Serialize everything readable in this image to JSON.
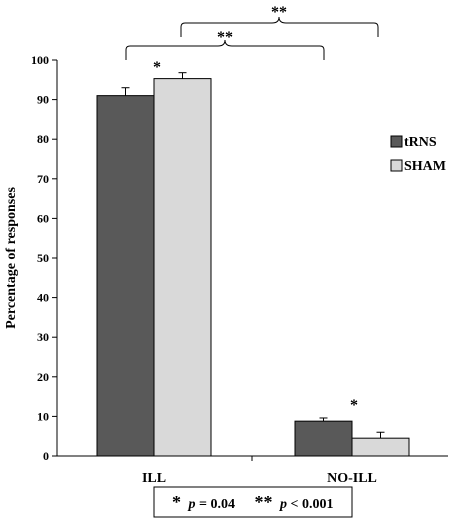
{
  "chart_data": {
    "type": "bar",
    "ylabel": "Percentage of responses",
    "ylim": [
      0,
      100
    ],
    "yticks": [
      0,
      10,
      20,
      30,
      40,
      50,
      60,
      70,
      80,
      90,
      100
    ],
    "categories": [
      "ILL",
      "NO-ILL"
    ],
    "series": [
      {
        "name": "tRNS",
        "values": [
          91,
          8.8
        ],
        "errors": [
          2,
          0.8
        ],
        "color": "#595959"
      },
      {
        "name": "SHAM",
        "values": [
          95.3,
          4.5
        ],
        "errors": [
          1.5,
          1.5
        ],
        "color": "#d9d9d9"
      }
    ],
    "legend": "right",
    "significance": {
      "bar_star": "*",
      "bracket_near": "**",
      "bracket_far": "**"
    },
    "footnote": {
      "star1": "*",
      "text1": " = 0.04",
      "star2": "**",
      "text2": " < 0.001",
      "p": "p"
    }
  }
}
